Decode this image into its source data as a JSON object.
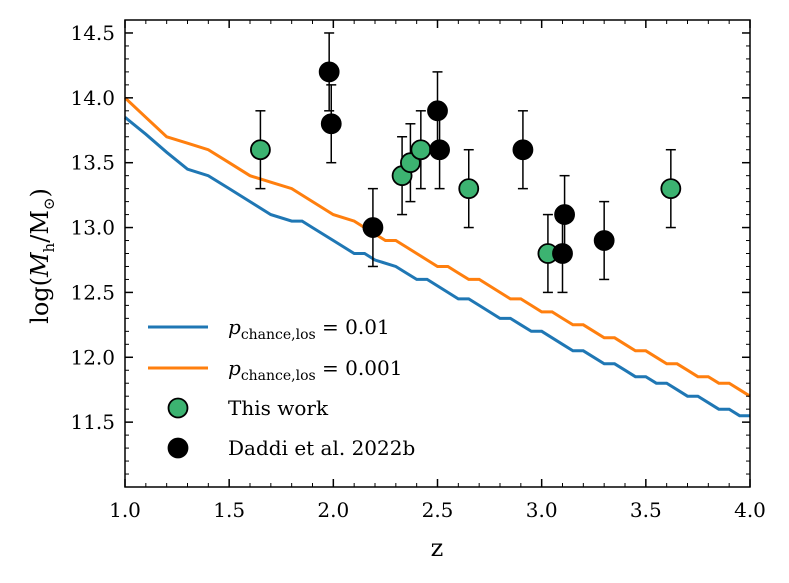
{
  "chart_data": {
    "type": "scatter",
    "xlabel": "z",
    "ylabel": "log(Mh/M⊙)",
    "xlim": [
      1.0,
      4.0
    ],
    "ylim": [
      11.0,
      14.6
    ],
    "x_ticks": [
      "1.0",
      "1.5",
      "2.0",
      "2.5",
      "3.0",
      "3.5",
      "4.0"
    ],
    "y_ticks": [
      "11.5",
      "12.0",
      "12.5",
      "13.0",
      "13.5",
      "14.0",
      "14.5"
    ],
    "legend_position": "lower-left",
    "lines": [
      {
        "name": "p_chance,los = 0.01",
        "legend_label": {
          "var": "p",
          "sub": "chance,los",
          "value": " = 0.01"
        },
        "color": "#1f77b4",
        "x": [
          1.0,
          1.1,
          1.2,
          1.3,
          1.4,
          1.5,
          1.6,
          1.7,
          1.8,
          1.85,
          1.9,
          2.0,
          2.1,
          2.15,
          2.2,
          2.3,
          2.35,
          2.4,
          2.45,
          2.5,
          2.55,
          2.6,
          2.65,
          2.7,
          2.75,
          2.8,
          2.85,
          2.9,
          2.95,
          3.0,
          3.05,
          3.1,
          3.15,
          3.2,
          3.25,
          3.3,
          3.35,
          3.4,
          3.45,
          3.5,
          3.55,
          3.6,
          3.65,
          3.7,
          3.75,
          3.8,
          3.85,
          3.9,
          3.95,
          4.0
        ],
        "y": [
          13.85,
          13.72,
          13.58,
          13.45,
          13.4,
          13.3,
          13.2,
          13.1,
          13.05,
          13.05,
          13.0,
          12.9,
          12.8,
          12.8,
          12.75,
          12.7,
          12.65,
          12.6,
          12.6,
          12.55,
          12.5,
          12.45,
          12.45,
          12.4,
          12.35,
          12.3,
          12.3,
          12.25,
          12.2,
          12.2,
          12.15,
          12.1,
          12.05,
          12.05,
          12.0,
          11.95,
          11.95,
          11.9,
          11.85,
          11.85,
          11.8,
          11.8,
          11.75,
          11.7,
          11.7,
          11.65,
          11.6,
          11.6,
          11.55,
          11.55
        ]
      },
      {
        "name": "p_chance,los = 0.001",
        "legend_label": {
          "var": "p",
          "sub": "chance,los",
          "value": " = 0.001"
        },
        "color": "#ff7f0e",
        "x": [
          1.0,
          1.1,
          1.2,
          1.3,
          1.4,
          1.5,
          1.6,
          1.7,
          1.8,
          1.85,
          1.9,
          2.0,
          2.1,
          2.15,
          2.2,
          2.25,
          2.3,
          2.35,
          2.4,
          2.45,
          2.5,
          2.55,
          2.6,
          2.65,
          2.7,
          2.75,
          2.8,
          2.85,
          2.9,
          2.95,
          3.0,
          3.05,
          3.1,
          3.15,
          3.2,
          3.25,
          3.3,
          3.35,
          3.4,
          3.45,
          3.5,
          3.55,
          3.6,
          3.65,
          3.7,
          3.75,
          3.8,
          3.85,
          3.9,
          3.95,
          4.0
        ],
        "y": [
          14.0,
          13.85,
          13.7,
          13.65,
          13.6,
          13.5,
          13.4,
          13.35,
          13.3,
          13.25,
          13.2,
          13.1,
          13.05,
          13.0,
          12.95,
          12.9,
          12.9,
          12.85,
          12.8,
          12.75,
          12.7,
          12.7,
          12.65,
          12.6,
          12.6,
          12.55,
          12.5,
          12.45,
          12.45,
          12.4,
          12.35,
          12.35,
          12.3,
          12.25,
          12.25,
          12.2,
          12.15,
          12.15,
          12.1,
          12.05,
          12.05,
          12.0,
          11.95,
          11.95,
          11.9,
          11.85,
          11.85,
          11.8,
          11.8,
          11.75,
          11.7
        ]
      }
    ],
    "series": [
      {
        "name": "This work",
        "face_color": "#3cb371",
        "edge_color": "#000000",
        "points": [
          {
            "x": 1.65,
            "y": 13.6,
            "yerr": 0.3
          },
          {
            "x": 2.33,
            "y": 13.4,
            "yerr": 0.3
          },
          {
            "x": 2.37,
            "y": 13.5,
            "yerr": 0.3
          },
          {
            "x": 2.42,
            "y": 13.6,
            "yerr": 0.3
          },
          {
            "x": 2.65,
            "y": 13.3,
            "yerr": 0.3
          },
          {
            "x": 3.03,
            "y": 12.8,
            "yerr": 0.3
          },
          {
            "x": 3.62,
            "y": 13.3,
            "yerr": 0.3
          }
        ]
      },
      {
        "name": "Daddi et al. 2022b",
        "face_color": "#000000",
        "edge_color": "#000000",
        "points": [
          {
            "x": 1.98,
            "y": 14.2,
            "yerr": 0.3
          },
          {
            "x": 1.99,
            "y": 13.8,
            "yerr": 0.3
          },
          {
            "x": 2.19,
            "y": 13.0,
            "yerr": 0.3
          },
          {
            "x": 2.5,
            "y": 13.9,
            "yerr": 0.3
          },
          {
            "x": 2.51,
            "y": 13.6,
            "yerr": 0.3
          },
          {
            "x": 2.91,
            "y": 13.6,
            "yerr": 0.3
          },
          {
            "x": 3.1,
            "y": 12.8,
            "yerr": 0.3
          },
          {
            "x": 3.11,
            "y": 13.1,
            "yerr": 0.3
          },
          {
            "x": 3.3,
            "y": 12.9,
            "yerr": 0.3
          }
        ]
      }
    ]
  }
}
